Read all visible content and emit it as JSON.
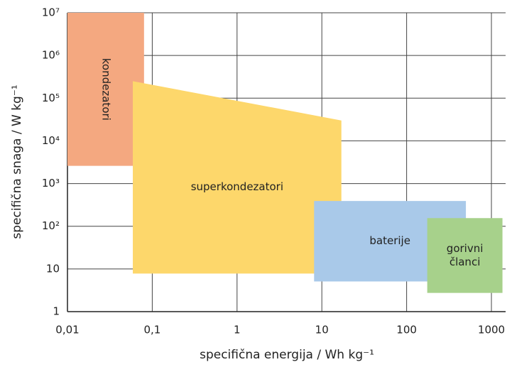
{
  "chart_data": {
    "type": "region",
    "xlabel": "specifična energija / Wh kg⁻¹",
    "ylabel": "specifična snaga / W kg⁻¹",
    "xlog": true,
    "ylog": true,
    "grid": true,
    "xlim": [
      0.01,
      1470
    ],
    "ylim": [
      1,
      10000000
    ],
    "xticks": [
      {
        "value": 0.01,
        "label": "0,01"
      },
      {
        "value": 0.1,
        "label": "0,1"
      },
      1,
      10,
      100,
      1000
    ],
    "yticks": [
      1,
      10,
      {
        "value": 100,
        "label": "10²"
      },
      {
        "value": 1000,
        "label": "10³"
      },
      {
        "value": 10000,
        "label": "10⁴"
      },
      {
        "value": 100000,
        "label": "10⁵"
      },
      {
        "value": 1000000,
        "label": "10⁶"
      },
      {
        "value": 10000000,
        "label": "10⁷"
      }
    ],
    "series": [
      {
        "name": "kondezatori",
        "color": "#f4a880",
        "rotate": true,
        "x": [
          0.01,
          0.08,
          0.08,
          0.01
        ],
        "y": [
          10000000,
          10000000,
          2600,
          2600
        ]
      },
      {
        "name": "superkondezatori",
        "color": "#fdd76b",
        "x": [
          0.059,
          17,
          17,
          0.059
        ],
        "y": [
          250000,
          30000,
          7.8,
          7.8
        ]
      },
      {
        "name": "baterije",
        "color": "#a9c9e9",
        "x": [
          8.1,
          500,
          500,
          8.1
        ],
        "y": [
          390,
          390,
          5.1,
          5.1
        ]
      },
      {
        "name": "gorivni članci",
        "color": "#a7d18b",
        "x": [
          175,
          1350,
          1350,
          175
        ],
        "y": [
          155,
          155,
          2.75,
          2.75
        ]
      }
    ]
  }
}
